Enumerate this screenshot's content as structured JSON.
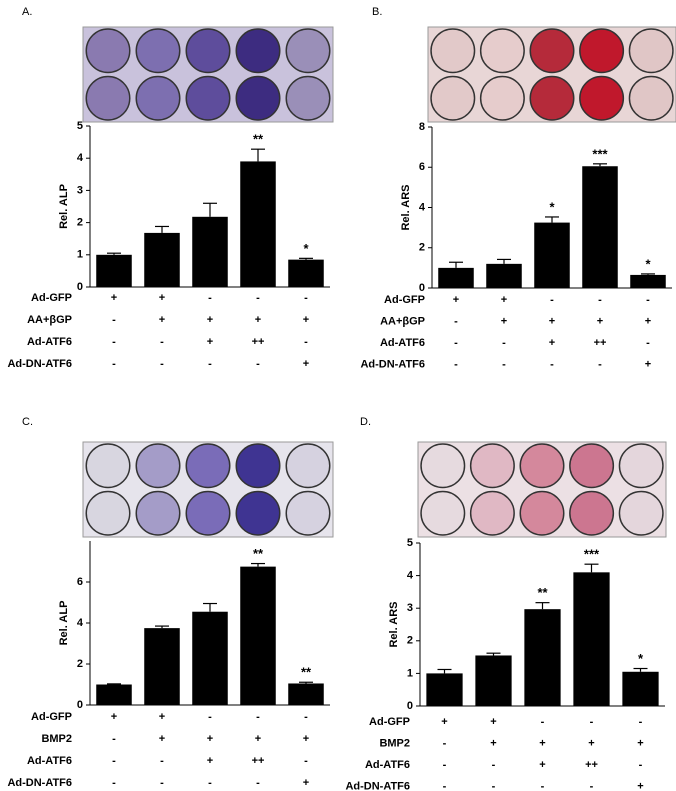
{
  "chart_data": [
    {
      "type": "bar",
      "title": "A.",
      "y_label": "Rel. ALP",
      "color": "#000000",
      "values": [
        1.0,
        1.68,
        2.18,
        3.9,
        0.85
      ],
      "errors": [
        0.05,
        0.2,
        0.42,
        0.38,
        0.04
      ],
      "annotations": [
        null,
        null,
        null,
        "**",
        "*"
      ],
      "ylim": [
        0,
        5
      ],
      "yticks": [
        0,
        1,
        2,
        3,
        4,
        5
      ],
      "treatments": [
        {
          "name": "Ad-GFP",
          "signs": [
            "+",
            "+",
            "-",
            "-",
            "-"
          ]
        },
        {
          "name": "AA+βGP",
          "signs": [
            "-",
            "+",
            "+",
            "+",
            "+"
          ]
        },
        {
          "name": "Ad-ATF6",
          "signs": [
            "-",
            "-",
            "+",
            "++",
            "-"
          ]
        },
        {
          "name": "Ad-DN-ATF6",
          "signs": [
            "-",
            "-",
            "-",
            "-",
            "+"
          ]
        }
      ]
    },
    {
      "type": "bar",
      "title": "B.",
      "y_label": "Rel. ARS",
      "color": "#000000",
      "values": [
        1.0,
        1.2,
        3.25,
        6.05,
        0.65
      ],
      "errors": [
        0.28,
        0.22,
        0.28,
        0.12,
        0.05
      ],
      "annotations": [
        null,
        null,
        "*",
        "***",
        "*"
      ],
      "ylim": [
        0,
        8
      ],
      "yticks": [
        0,
        2,
        4,
        6,
        8
      ],
      "treatments": [
        {
          "name": "Ad-GFP",
          "signs": [
            "+",
            "+",
            "-",
            "-",
            "-"
          ]
        },
        {
          "name": "AA+βGP",
          "signs": [
            "-",
            "+",
            "+",
            "+",
            "+"
          ]
        },
        {
          "name": "Ad-ATF6",
          "signs": [
            "-",
            "-",
            "+",
            "++",
            "-"
          ]
        },
        {
          "name": "Ad-DN-ATF6",
          "signs": [
            "-",
            "-",
            "-",
            "-",
            "+"
          ]
        }
      ]
    },
    {
      "type": "bar",
      "title": "C.",
      "y_label": "Rel. ALP",
      "color": "#000000",
      "values": [
        1.0,
        3.75,
        4.55,
        6.75,
        1.05
      ],
      "errors": [
        0.03,
        0.1,
        0.4,
        0.15,
        0.06
      ],
      "annotations": [
        null,
        null,
        null,
        "**",
        "**"
      ],
      "ylim": [
        0,
        8
      ],
      "yticks": [
        0,
        2,
        4,
        6
      ],
      "treatments": [
        {
          "name": "Ad-GFP",
          "signs": [
            "+",
            "+",
            "-",
            "-",
            "-"
          ]
        },
        {
          "name": "BMP2",
          "signs": [
            "-",
            "+",
            "+",
            "+",
            "+"
          ]
        },
        {
          "name": "Ad-ATF6",
          "signs": [
            "-",
            "-",
            "+",
            "++",
            "-"
          ]
        },
        {
          "name": "Ad-DN-ATF6",
          "signs": [
            "-",
            "-",
            "-",
            "-",
            "+"
          ]
        }
      ]
    },
    {
      "type": "bar",
      "title": "D.",
      "y_label": "Rel. ARS",
      "color": "#000000",
      "values": [
        1.0,
        1.55,
        2.97,
        4.1,
        1.05
      ],
      "errors": [
        0.12,
        0.07,
        0.2,
        0.25,
        0.1
      ],
      "annotations": [
        null,
        null,
        "**",
        "***",
        "*"
      ],
      "ylim": [
        0,
        5
      ],
      "yticks": [
        0,
        1,
        2,
        3,
        4,
        5
      ],
      "treatments": [
        {
          "name": "Ad-GFP",
          "signs": [
            "+",
            "+",
            "-",
            "-",
            "-"
          ]
        },
        {
          "name": "BMP2",
          "signs": [
            "-",
            "+",
            "+",
            "+",
            "+"
          ]
        },
        {
          "name": "Ad-ATF6",
          "signs": [
            "-",
            "-",
            "+",
            "++",
            "-"
          ]
        },
        {
          "name": "Ad-DN-ATF6",
          "signs": [
            "-",
            "-",
            "-",
            "-",
            "+"
          ]
        }
      ]
    }
  ]
}
